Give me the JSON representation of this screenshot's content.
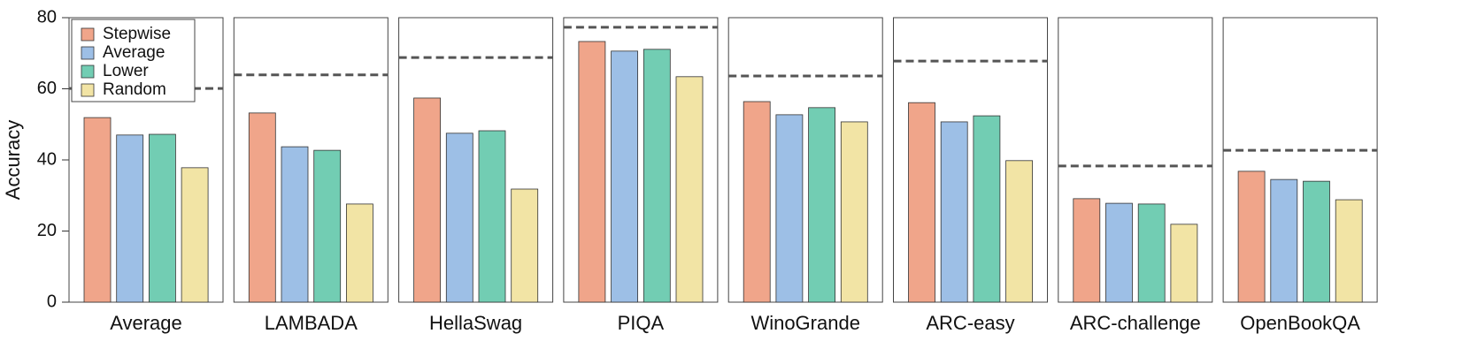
{
  "chart_data": {
    "type": "bar",
    "ylabel": "Accuracy",
    "categories": [
      "Average",
      "LAMBADA",
      "HellaSwag",
      "PIQA",
      "WinoGrande",
      "ARC-easy",
      "ARC-challenge",
      "OpenBookQA"
    ],
    "series": [
      {
        "name": "Stepwise",
        "color": "#f0a58a",
        "values": [
          51.9,
          53.2,
          57.4,
          73.3,
          56.4,
          56.1,
          29.1,
          36.8
        ]
      },
      {
        "name": "Average",
        "color": "#9dbfe6",
        "values": [
          47.0,
          43.7,
          47.5,
          70.6,
          52.7,
          50.7,
          27.8,
          34.5
        ]
      },
      {
        "name": "Lower",
        "color": "#72cdb3",
        "values": [
          47.2,
          42.7,
          48.2,
          71.1,
          54.7,
          52.4,
          27.6,
          34.0
        ]
      },
      {
        "name": "Random",
        "color": "#f2e4a5",
        "values": [
          37.8,
          27.6,
          31.8,
          63.4,
          50.7,
          39.8,
          21.9,
          28.8
        ]
      }
    ],
    "reference_values": [
      60.1,
      63.9,
      68.8,
      77.3,
      63.6,
      67.8,
      38.3,
      42.7
    ],
    "ylim": [
      0,
      80
    ],
    "yticks": [
      0,
      20,
      40,
      60,
      80
    ]
  }
}
